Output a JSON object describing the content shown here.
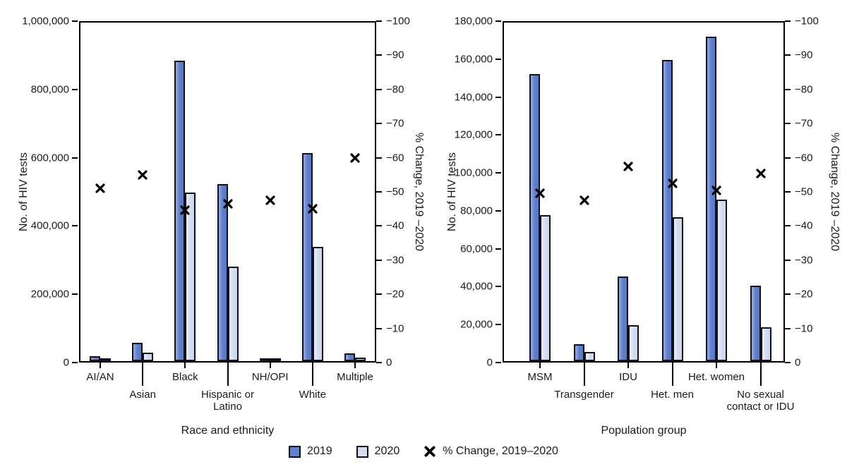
{
  "figure": {
    "background": "#ffffff"
  },
  "colors": {
    "bar2019": "#6080cb",
    "bar2020": "#d5dcef",
    "bar_outline": "#10101e",
    "axis": "#000000",
    "marker": "#000000",
    "text": "#1c1a1b"
  },
  "legend": {
    "items": [
      {
        "label": "2019",
        "swatch": "2019-box"
      },
      {
        "label": "2020",
        "swatch": "2020-box"
      },
      {
        "label": "% Change, 2019–2020",
        "swatch": "x-marker"
      }
    ]
  },
  "chart_data": [
    {
      "type": "bar",
      "panel": "left",
      "xlabel": "Race and ethnicity",
      "ylabel_left": "No. of HIV tests",
      "ylabel_right": "% Change, 2019 –2020",
      "ylim_left": [
        0,
        1000000
      ],
      "yticks_left": {
        "values": [
          0,
          200000,
          400000,
          600000,
          800000,
          1000000
        ],
        "labels": [
          "0",
          "200,000",
          "400,000",
          "600,000",
          "800,000",
          "1,000,000"
        ]
      },
      "ylim_right": [
        0,
        -100
      ],
      "yticks_right": {
        "values": [
          0,
          -10,
          -20,
          -30,
          -40,
          -50,
          -60,
          -70,
          -80,
          -90,
          -100
        ],
        "labels": [
          "0",
          "−10",
          "−20",
          "−30",
          "−40",
          "−50",
          "−60",
          "−70",
          "−80",
          "−90",
          "−100"
        ]
      },
      "categories": [
        {
          "label": "AI/AN",
          "lines": [
            "AI/AN"
          ],
          "row": 1
        },
        {
          "label": "Asian",
          "lines": [
            "Asian"
          ],
          "row": 2
        },
        {
          "label": "Black",
          "lines": [
            "Black"
          ],
          "row": 1
        },
        {
          "label": "Hispanic or Latino",
          "lines": [
            "Hispanic or",
            "Latino"
          ],
          "row": 2
        },
        {
          "label": "NH/OPI",
          "lines": [
            "NH/OPI"
          ],
          "row": 1
        },
        {
          "label": "White",
          "lines": [
            "White"
          ],
          "row": 2
        },
        {
          "label": "Multiple",
          "lines": [
            "Multiple"
          ],
          "row": 1
        }
      ],
      "series": [
        {
          "name": "2019",
          "values": [
            15000,
            54000,
            888000,
            523000,
            5000,
            615000,
            22000
          ]
        },
        {
          "name": "2020",
          "values": [
            8000,
            25000,
            497000,
            280000,
            2000,
            337000,
            10000
          ]
        }
      ],
      "pct_change": [
        -51,
        -55,
        -44.5,
        -46.5,
        -47.5,
        -45,
        -60
      ]
    },
    {
      "type": "bar",
      "panel": "right",
      "xlabel": "Population group",
      "ylabel_left": "No. of HIV tests",
      "ylabel_right": "% Change, 2019 –2020",
      "ylim_left": [
        0,
        180000
      ],
      "yticks_left": {
        "values": [
          0,
          20000,
          40000,
          60000,
          80000,
          100000,
          120000,
          140000,
          160000,
          180000
        ],
        "labels": [
          "0",
          "20,000",
          "40,000",
          "60,000",
          "80,000",
          "100,000",
          "120,000",
          "140,000",
          "160,000",
          "180,000"
        ]
      },
      "ylim_right": [
        0,
        -100
      ],
      "yticks_right": {
        "values": [
          0,
          -10,
          -20,
          -30,
          -40,
          -50,
          -60,
          -70,
          -80,
          -90,
          -100
        ],
        "labels": [
          "0",
          "−10",
          "−20",
          "−30",
          "−40",
          "−50",
          "−60",
          "−70",
          "−80",
          "−90",
          "−100"
        ]
      },
      "categories": [
        {
          "label": "MSM",
          "lines": [
            "MSM"
          ],
          "row": 1
        },
        {
          "label": "Transgender",
          "lines": [
            "Transgender"
          ],
          "row": 2
        },
        {
          "label": "IDU",
          "lines": [
            "IDU"
          ],
          "row": 1
        },
        {
          "label": "Het. men",
          "lines": [
            "Het. men"
          ],
          "row": 2
        },
        {
          "label": "Het. women",
          "lines": [
            "Het. women"
          ],
          "row": 1
        },
        {
          "label": "No sexual contact or IDU",
          "lines": [
            "No sexual",
            "contact or IDU"
          ],
          "row": 2
        }
      ],
      "series": [
        {
          "name": "2019",
          "values": [
            152500,
            9000,
            45000,
            160000,
            172500,
            40000
          ]
        },
        {
          "name": "2020",
          "values": [
            77500,
            5000,
            19000,
            76500,
            86000,
            18000
          ]
        }
      ],
      "pct_change": [
        -49.5,
        -47.5,
        -57.5,
        -52.5,
        -50.5,
        -55.5
      ]
    }
  ]
}
